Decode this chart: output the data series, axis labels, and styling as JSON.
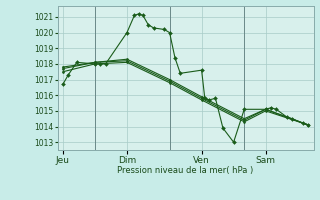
{
  "background_color": "#c8ece8",
  "plot_bg_color": "#d8f0ec",
  "grid_color": "#a8ccc8",
  "line_color": "#1a5c1a",
  "ylabel_text": "Pression niveau de la mer( hPa )",
  "ylim": [
    1012.5,
    1021.7
  ],
  "yticks": [
    1013,
    1014,
    1015,
    1016,
    1017,
    1018,
    1019,
    1020,
    1021
  ],
  "day_labels": [
    "Jeu",
    "Dim",
    "Ven",
    "Sam"
  ],
  "day_positions": [
    0.5,
    6.5,
    13.5,
    19.5
  ],
  "vline_positions": [
    3.5,
    10.5,
    17.5
  ],
  "xlim": [
    0,
    24
  ],
  "series1_x": [
    0.5,
    1.0,
    1.8,
    3.5,
    4.0,
    4.5,
    6.5,
    7.2,
    7.6,
    8.0,
    8.5,
    9.0,
    10.0,
    10.5,
    11.0,
    11.5,
    13.5,
    13.8,
    14.2,
    14.8,
    15.5,
    16.5,
    17.5,
    19.5,
    20.0,
    20.5,
    21.5,
    22.0,
    23.0,
    23.5
  ],
  "series1_y": [
    1016.7,
    1017.3,
    1018.1,
    1018.0,
    1018.0,
    1018.0,
    1020.0,
    1021.1,
    1021.2,
    1021.1,
    1020.5,
    1020.3,
    1020.2,
    1020.0,
    1018.4,
    1017.4,
    1017.6,
    1015.8,
    1015.7,
    1015.8,
    1013.9,
    1013.0,
    1015.1,
    1015.1,
    1015.2,
    1015.1,
    1014.6,
    1014.5,
    1014.2,
    1014.1
  ],
  "series2_x": [
    0.5,
    3.5,
    6.5,
    10.5,
    13.5,
    17.5,
    19.5,
    23.5
  ],
  "series2_y": [
    1017.5,
    1018.0,
    1018.1,
    1016.8,
    1015.7,
    1014.3,
    1015.0,
    1014.1
  ],
  "series3_x": [
    0.5,
    3.5,
    6.5,
    10.5,
    13.5,
    17.5,
    19.5,
    23.5
  ],
  "series3_y": [
    1017.7,
    1018.1,
    1018.2,
    1016.9,
    1015.8,
    1014.4,
    1015.1,
    1014.1
  ],
  "series4_x": [
    0.5,
    3.5,
    6.5,
    10.5,
    13.5,
    17.5,
    19.5,
    23.5
  ],
  "series4_y": [
    1017.8,
    1018.1,
    1018.3,
    1017.0,
    1015.9,
    1014.5,
    1015.1,
    1014.1
  ],
  "figsize": [
    3.2,
    2.0
  ],
  "dpi": 100
}
